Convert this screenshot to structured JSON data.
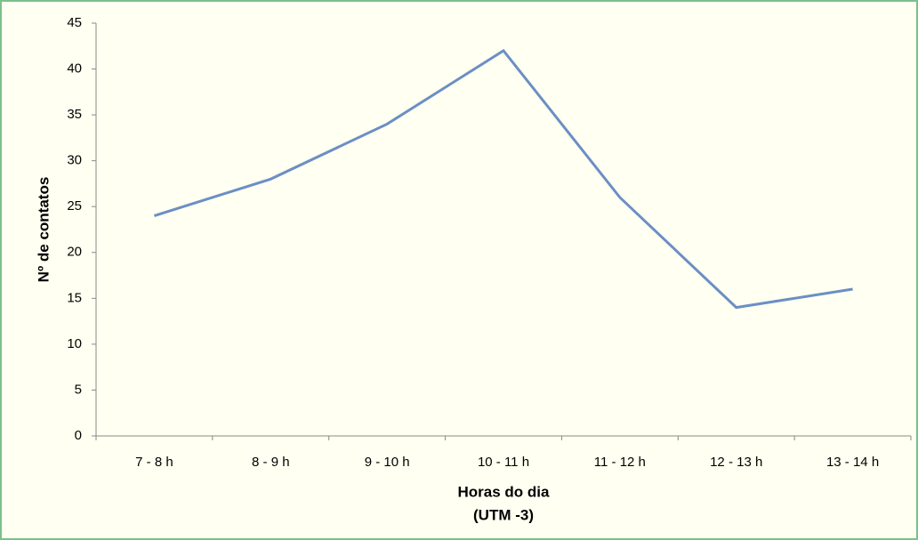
{
  "chart_data": {
    "type": "line",
    "categories": [
      "7 - 8 h",
      "8 - 9 h",
      "9 - 10 h",
      "10 - 11 h",
      "11 - 12 h",
      "12 - 13 h",
      "13 - 14 h"
    ],
    "series": [
      {
        "color": "#6b8fc4",
        "values": [
          24,
          28,
          34,
          42,
          26,
          14,
          16
        ]
      }
    ],
    "ylim": [
      0,
      45
    ],
    "yticks": [
      0,
      5,
      10,
      15,
      20,
      25,
      30,
      35,
      40,
      45
    ],
    "xlabel": [
      "Horas do dia",
      "(UTM -3)"
    ],
    "ylabel": "Nº de contatos",
    "grid": false
  }
}
